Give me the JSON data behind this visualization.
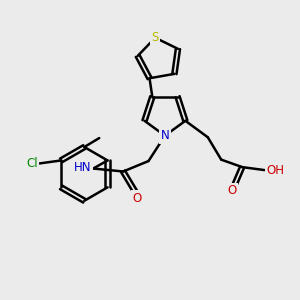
{
  "bg_color": "#ebebeb",
  "bond_color": "#000000",
  "bond_width": 1.8,
  "atom_colors": {
    "S": "#b8b800",
    "N": "#0000cc",
    "O": "#cc0000",
    "Cl": "#008800",
    "C": "#000000",
    "H": "#000000"
  },
  "font_size": 8.5,
  "fig_size": [
    3.0,
    3.0
  ],
  "dpi": 100
}
